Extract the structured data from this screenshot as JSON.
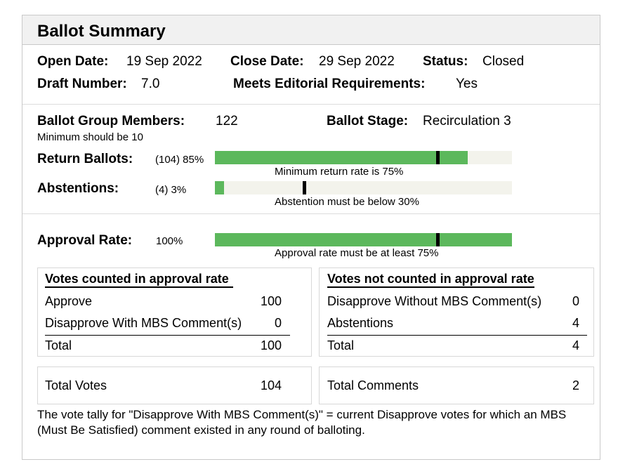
{
  "title": "Ballot Summary",
  "header": {
    "open_date_label": "Open Date:",
    "open_date": "19 Sep 2022",
    "close_date_label": "Close Date:",
    "close_date": "29 Sep 2022",
    "status_label": "Status:",
    "status": "Closed",
    "draft_label": "Draft Number:",
    "draft": "7.0",
    "editorial_label": "Meets Editorial Requirements:",
    "editorial": "Yes"
  },
  "group": {
    "members_label": "Ballot Group Members:",
    "members": "122",
    "members_note": "Minimum should be 10",
    "stage_label": "Ballot Stage:",
    "stage": "Recirculation 3"
  },
  "return": {
    "label": "Return Ballots:",
    "value": "(104) 85%",
    "fraction": 0.85,
    "threshold": 0.75,
    "caption": "Minimum return rate is 75%"
  },
  "abstentions": {
    "label": "Abstentions:",
    "value": "(4) 3%",
    "fraction": 0.03,
    "threshold": 0.3,
    "caption": "Abstention must be below 30%"
  },
  "approval": {
    "label": "Approval Rate:",
    "value": "100%",
    "fraction": 1.0,
    "threshold": 0.75,
    "caption": "Approval rate must be at least 75%"
  },
  "counted": {
    "heading": "Votes counted in approval rate",
    "rows": [
      {
        "label": "Approve",
        "value": "100"
      },
      {
        "label": "Disapprove With MBS Comment(s)",
        "value": "0"
      }
    ],
    "total_label": "Total",
    "total": "100"
  },
  "not_counted": {
    "heading": "Votes not counted in approval rate",
    "rows": [
      {
        "label": "Disapprove Without MBS Comment(s)",
        "value": "0"
      },
      {
        "label": "Abstentions",
        "value": "4"
      }
    ],
    "total_label": "Total",
    "total": "4"
  },
  "totals": {
    "votes_label": "Total Votes",
    "votes": "104",
    "comments_label": "Total Comments",
    "comments": "2"
  },
  "note": "The vote tally for \"Disapprove With MBS Comment(s)\" = current Disapprove votes for which an MBS (Must Be Satisfied) comment existed in any round of balloting.",
  "colors": {
    "bar_fill": "#5cb85c",
    "bar_track": "#f3f3ec",
    "marker": "#000000"
  }
}
